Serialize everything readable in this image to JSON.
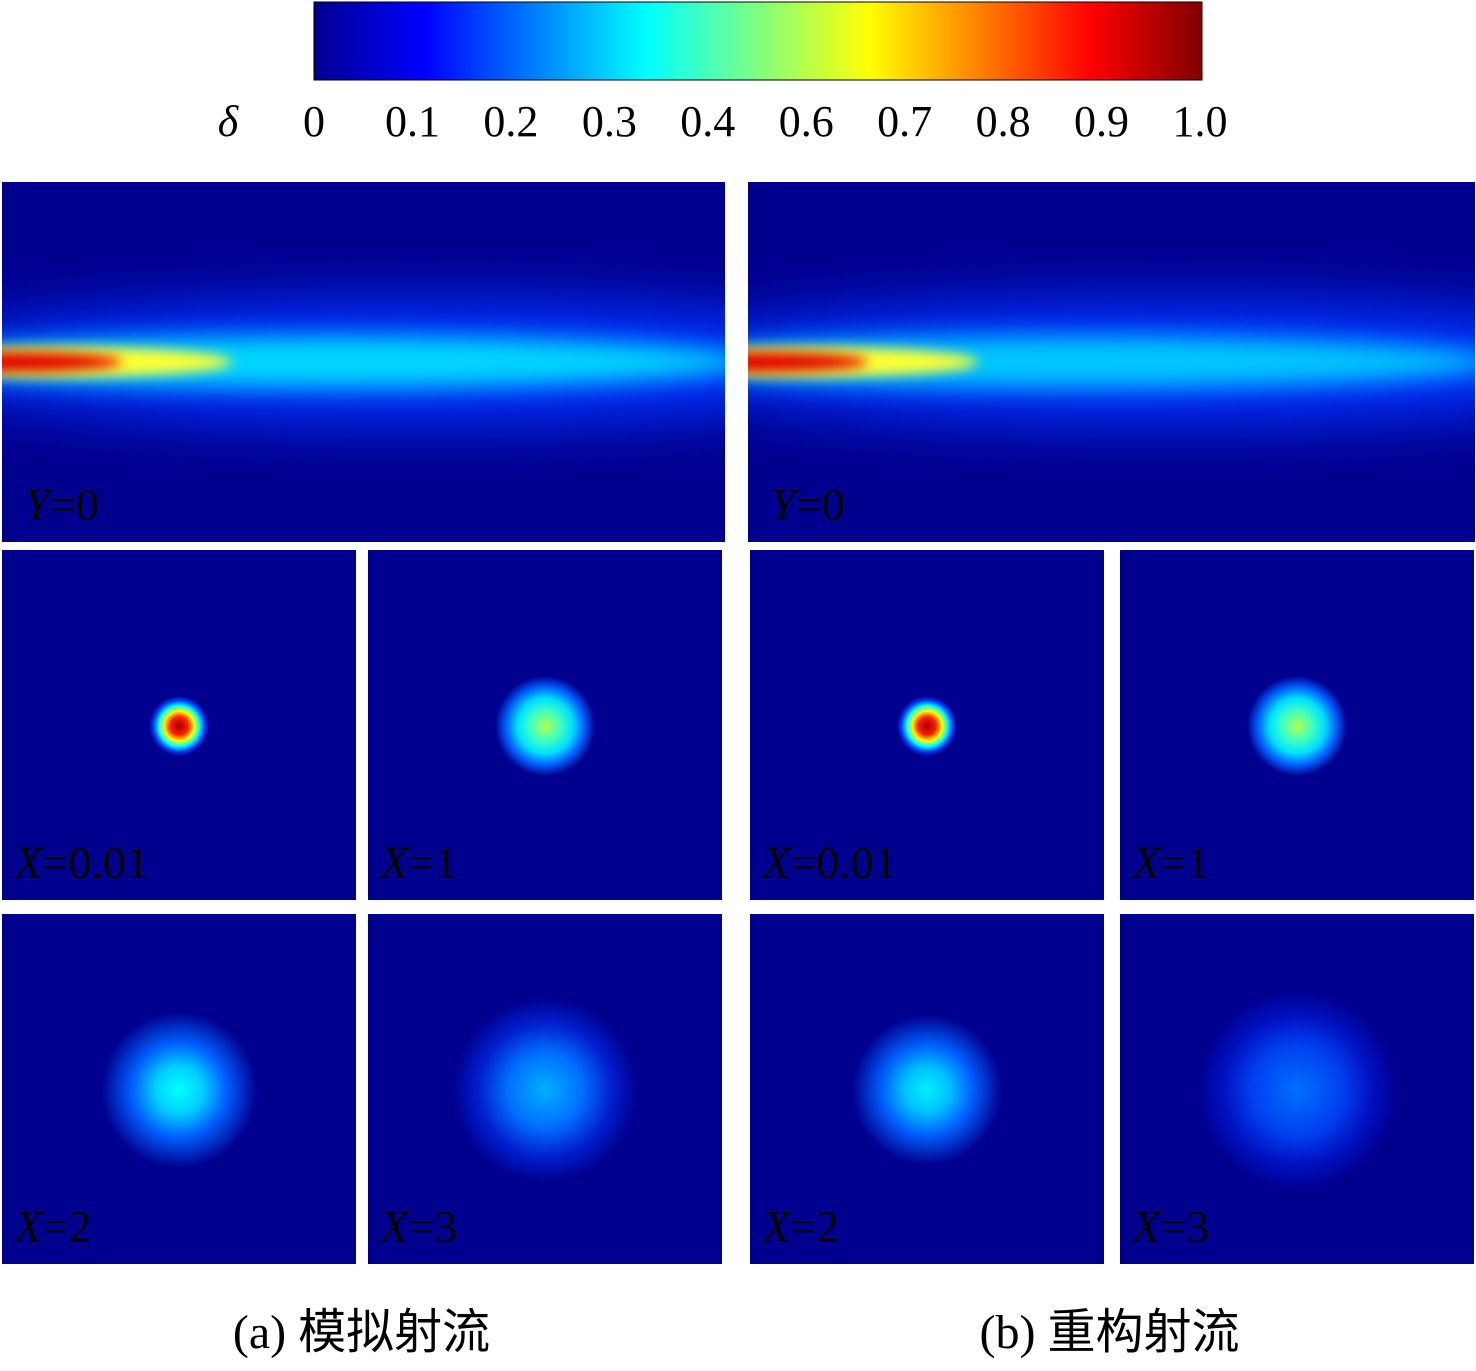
{
  "colorbar": {
    "symbol": "δ",
    "tick_labels": [
      "0",
      "0.1",
      "0.2",
      "0.3",
      "0.4",
      "0.6",
      "0.7",
      "0.8",
      "0.9",
      "1.0"
    ]
  },
  "panels": [
    {
      "caption": "(a) 模拟射流",
      "side_view": {
        "var": "Y",
        "eq": "=0"
      },
      "sections": [
        {
          "var": "X",
          "eq": "=0.01"
        },
        {
          "var": "X",
          "eq": "=1"
        },
        {
          "var": "X",
          "eq": "=2"
        },
        {
          "var": "X",
          "eq": "=3"
        }
      ]
    },
    {
      "caption": "(b) 重构射流",
      "side_view": {
        "var": "Y",
        "eq": "=0"
      },
      "sections": [
        {
          "var": "X",
          "eq": "=0.01"
        },
        {
          "var": "X",
          "eq": "=1"
        },
        {
          "var": "X",
          "eq": "=2"
        },
        {
          "var": "X",
          "eq": "=3"
        }
      ]
    }
  ]
}
